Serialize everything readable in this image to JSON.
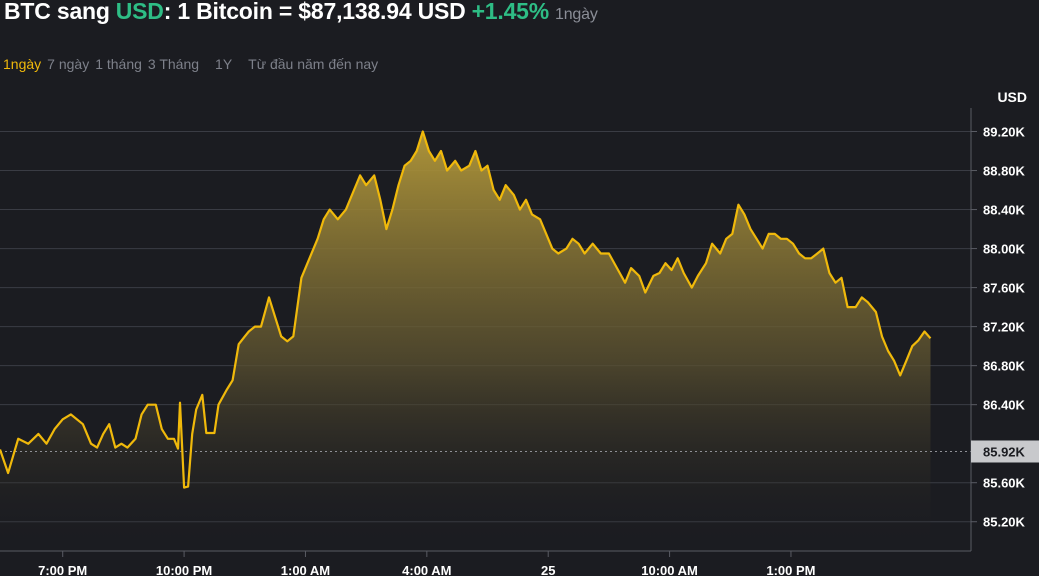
{
  "header": {
    "base": "BTC sang",
    "quote": "USD",
    "rate_text": ": 1 Bitcoin = $87,138.94 USD",
    "change": "+1.45%",
    "period": "1ngày"
  },
  "tabs": [
    {
      "label": "1ngày",
      "active": true
    },
    {
      "label": "7 ngày",
      "active": false
    },
    {
      "label": "1 tháng",
      "active": false
    },
    {
      "label": "3 Tháng",
      "active": false
    },
    {
      "label": "1Y",
      "active": false
    },
    {
      "label": "Từ đầu năm đến nay",
      "active": false
    }
  ],
  "colors": {
    "background": "#1b1c21",
    "line": "#f0b90b",
    "positive": "#2ebd85",
    "grid": "#3a3c44",
    "current_price_tag": "#c8c9cc"
  },
  "chart_data": {
    "type": "area",
    "unit": "USD",
    "ylim": [
      84900,
      89400
    ],
    "yticks": [
      {
        "value": 85200,
        "label": "85.20K"
      },
      {
        "value": 85600,
        "label": "85.60K"
      },
      {
        "value": 86400,
        "label": "86.40K"
      },
      {
        "value": 86800,
        "label": "86.80K"
      },
      {
        "value": 87200,
        "label": "87.20K"
      },
      {
        "value": 87600,
        "label": "87.60K"
      },
      {
        "value": 88000,
        "label": "88.00K"
      },
      {
        "value": 88400,
        "label": "88.40K"
      },
      {
        "value": 88800,
        "label": "88.80K"
      },
      {
        "value": 89200,
        "label": "89.20K"
      }
    ],
    "reference_line": {
      "value": 85920,
      "label": "85.92K"
    },
    "xlim": [
      -1.55,
      22.45
    ],
    "xticks": [
      {
        "value": 0,
        "label": "7:00 PM"
      },
      {
        "value": 3,
        "label": "10:00 PM"
      },
      {
        "value": 6,
        "label": "1:00 AM"
      },
      {
        "value": 9,
        "label": "4:00 AM"
      },
      {
        "value": 12,
        "label": "25"
      },
      {
        "value": 15,
        "label": "10:00 AM"
      },
      {
        "value": 18,
        "label": "1:00 PM"
      }
    ],
    "x_unit": "hours since 7:00 PM",
    "series": [
      {
        "points": [
          [
            -1.55,
            85940
          ],
          [
            -1.35,
            85700
          ],
          [
            -1.1,
            86050
          ],
          [
            -0.85,
            86000
          ],
          [
            -0.6,
            86100
          ],
          [
            -0.4,
            86000
          ],
          [
            -0.2,
            86150
          ],
          [
            0,
            86250
          ],
          [
            0.2,
            86300
          ],
          [
            0.5,
            86200
          ],
          [
            0.7,
            86000
          ],
          [
            0.85,
            85960
          ],
          [
            1.0,
            86100
          ],
          [
            1.15,
            86200
          ],
          [
            1.3,
            85960
          ],
          [
            1.45,
            86000
          ],
          [
            1.6,
            85960
          ],
          [
            1.8,
            86050
          ],
          [
            1.95,
            86300
          ],
          [
            2.1,
            86400
          ],
          [
            2.3,
            86400
          ],
          [
            2.45,
            86150
          ],
          [
            2.6,
            86050
          ],
          [
            2.75,
            86050
          ],
          [
            2.85,
            85950
          ],
          [
            2.9,
            86420
          ],
          [
            3.0,
            85550
          ],
          [
            3.1,
            85560
          ],
          [
            3.2,
            86100
          ],
          [
            3.3,
            86350
          ],
          [
            3.45,
            86500
          ],
          [
            3.55,
            86110
          ],
          [
            3.75,
            86110
          ],
          [
            3.85,
            86400
          ],
          [
            4.05,
            86550
          ],
          [
            4.2,
            86650
          ],
          [
            4.35,
            87020
          ],
          [
            4.5,
            87100
          ],
          [
            4.6,
            87150
          ],
          [
            4.75,
            87200
          ],
          [
            4.9,
            87200
          ],
          [
            5.1,
            87500
          ],
          [
            5.25,
            87300
          ],
          [
            5.4,
            87100
          ],
          [
            5.55,
            87050
          ],
          [
            5.7,
            87100
          ],
          [
            5.9,
            87700
          ],
          [
            6.1,
            87900
          ],
          [
            6.3,
            88100
          ],
          [
            6.45,
            88300
          ],
          [
            6.6,
            88400
          ],
          [
            6.8,
            88300
          ],
          [
            7.0,
            88400
          ],
          [
            7.2,
            88600
          ],
          [
            7.35,
            88750
          ],
          [
            7.5,
            88650
          ],
          [
            7.7,
            88750
          ],
          [
            7.85,
            88500
          ],
          [
            8.0,
            88200
          ],
          [
            8.15,
            88400
          ],
          [
            8.3,
            88650
          ],
          [
            8.45,
            88850
          ],
          [
            8.6,
            88900
          ],
          [
            8.75,
            89000
          ],
          [
            8.9,
            89200
          ],
          [
            9.05,
            89000
          ],
          [
            9.2,
            88900
          ],
          [
            9.35,
            89000
          ],
          [
            9.5,
            88800
          ],
          [
            9.7,
            88900
          ],
          [
            9.85,
            88800
          ],
          [
            10.05,
            88850
          ],
          [
            10.2,
            89000
          ],
          [
            10.35,
            88800
          ],
          [
            10.5,
            88850
          ],
          [
            10.65,
            88600
          ],
          [
            10.8,
            88500
          ],
          [
            10.95,
            88650
          ],
          [
            11.15,
            88550
          ],
          [
            11.3,
            88400
          ],
          [
            11.45,
            88500
          ],
          [
            11.6,
            88350
          ],
          [
            11.8,
            88300
          ],
          [
            11.95,
            88150
          ],
          [
            12.1,
            88000
          ],
          [
            12.25,
            87950
          ],
          [
            12.45,
            88000
          ],
          [
            12.6,
            88100
          ],
          [
            12.75,
            88050
          ],
          [
            12.9,
            87950
          ],
          [
            13.1,
            88050
          ],
          [
            13.3,
            87950
          ],
          [
            13.5,
            87950
          ],
          [
            13.7,
            87800
          ],
          [
            13.9,
            87650
          ],
          [
            14.05,
            87800
          ],
          [
            14.25,
            87720
          ],
          [
            14.4,
            87550
          ],
          [
            14.6,
            87720
          ],
          [
            14.75,
            87750
          ],
          [
            14.9,
            87850
          ],
          [
            15.05,
            87780
          ],
          [
            15.2,
            87900
          ],
          [
            15.35,
            87750
          ],
          [
            15.55,
            87600
          ],
          [
            15.7,
            87720
          ],
          [
            15.9,
            87850
          ],
          [
            16.05,
            88050
          ],
          [
            16.25,
            87950
          ],
          [
            16.4,
            88100
          ],
          [
            16.55,
            88150
          ],
          [
            16.7,
            88450
          ],
          [
            16.85,
            88350
          ],
          [
            17.0,
            88200
          ],
          [
            17.15,
            88100
          ],
          [
            17.3,
            88000
          ],
          [
            17.45,
            88150
          ],
          [
            17.6,
            88150
          ],
          [
            17.75,
            88100
          ],
          [
            17.9,
            88100
          ],
          [
            18.05,
            88050
          ],
          [
            18.2,
            87950
          ],
          [
            18.35,
            87900
          ],
          [
            18.5,
            87900
          ],
          [
            18.65,
            87950
          ],
          [
            18.8,
            88000
          ],
          [
            18.95,
            87750
          ],
          [
            19.1,
            87650
          ],
          [
            19.25,
            87700
          ],
          [
            19.4,
            87400
          ],
          [
            19.6,
            87400
          ],
          [
            19.75,
            87500
          ],
          [
            19.9,
            87450
          ],
          [
            20.1,
            87350
          ],
          [
            20.25,
            87100
          ],
          [
            20.4,
            86950
          ],
          [
            20.55,
            86850
          ],
          [
            20.7,
            86700
          ],
          [
            20.85,
            86850
          ],
          [
            21.0,
            87000
          ],
          [
            21.15,
            87060
          ],
          [
            21.3,
            87150
          ],
          [
            21.45,
            87080
          ]
        ]
      }
    ]
  }
}
